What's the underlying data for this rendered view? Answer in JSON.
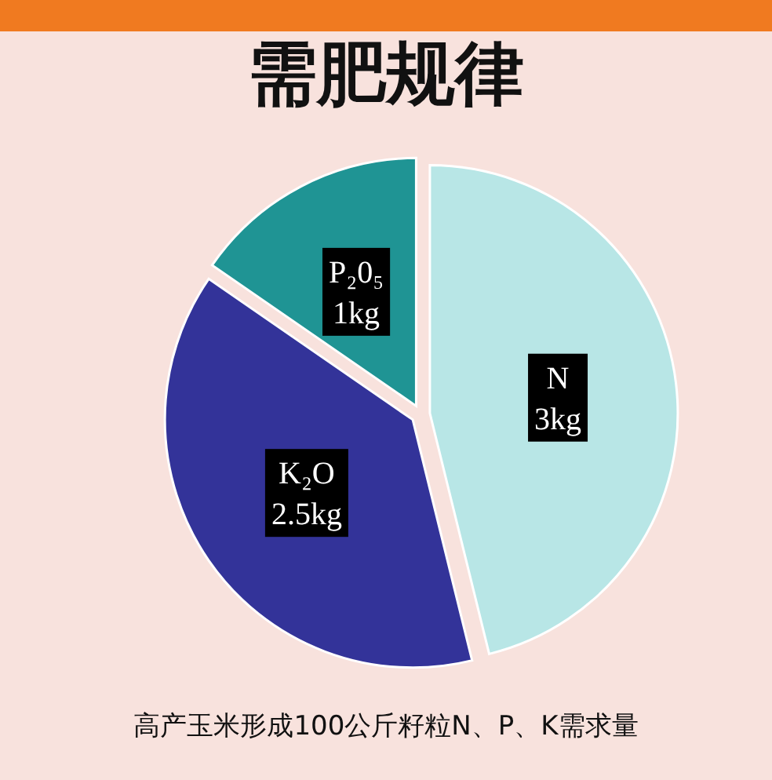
{
  "chart_data": {
    "type": "pie",
    "title": "需肥规律",
    "categories": [
      "N",
      "K₂O",
      "P₂0₅"
    ],
    "values": [
      3,
      2.5,
      1
    ],
    "colors": [
      "#b8e6e6",
      "#333399",
      "#1f9494"
    ],
    "value_labels": [
      "3kg",
      "2.5kg",
      "1kg"
    ],
    "annotations": [
      "高产玉米形成100公斤籽粒N、P、K需求量"
    ]
  }
}
